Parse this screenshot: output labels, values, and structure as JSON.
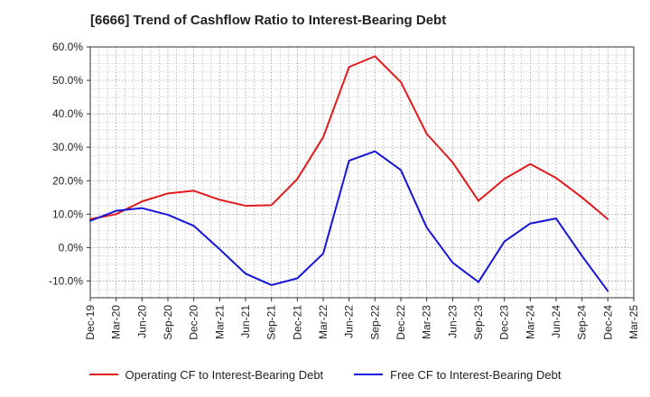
{
  "page": {
    "title": "[6666]  Trend of Cashflow Ratio to Interest-Bearing Debt"
  },
  "chart_data": {
    "type": "line",
    "title": "[6666]  Trend of Cashflow Ratio to Interest-Bearing Debt",
    "xlabel": "",
    "ylabel": "",
    "ylim": [
      -15,
      60
    ],
    "y_ticks": [
      "60.0%",
      "50.0%",
      "40.0%",
      "30.0%",
      "20.0%",
      "10.0%",
      "0.0%",
      "-10.0%"
    ],
    "y_tick_values": [
      60,
      50,
      40,
      30,
      20,
      10,
      0,
      -10
    ],
    "categories": [
      "Dec-19",
      "Mar-20",
      "Jun-20",
      "Sep-20",
      "Dec-20",
      "Mar-21",
      "Jun-21",
      "Sep-21",
      "Dec-21",
      "Mar-22",
      "Jun-22",
      "Sep-22",
      "Dec-22",
      "Mar-23",
      "Jun-23",
      "Sep-23",
      "Dec-23",
      "Mar-24",
      "Jun-24",
      "Sep-24",
      "Dec-24",
      "Mar-25"
    ],
    "grid": true,
    "legend_position": "bottom",
    "series": [
      {
        "name": "Operating CF to Interest-Bearing Debt",
        "color": "#e31a1c",
        "values": [
          8.5,
          10.0,
          13.8,
          16.2,
          17.0,
          14.3,
          12.5,
          12.7,
          20.5,
          33.0,
          54.0,
          57.2,
          49.5,
          34.0,
          25.5,
          14.0,
          20.5,
          25.0,
          20.8,
          15.0,
          8.5,
          null
        ]
      },
      {
        "name": "Free CF to Interest-Bearing Debt",
        "color": "#1515d9",
        "values": [
          8.0,
          11.0,
          11.8,
          9.8,
          6.5,
          -0.5,
          -7.8,
          -11.2,
          -9.2,
          -1.8,
          26.0,
          28.8,
          23.2,
          6.0,
          -4.5,
          -10.3,
          1.8,
          7.2,
          8.7,
          -2.5,
          -13.0,
          null
        ]
      }
    ]
  }
}
